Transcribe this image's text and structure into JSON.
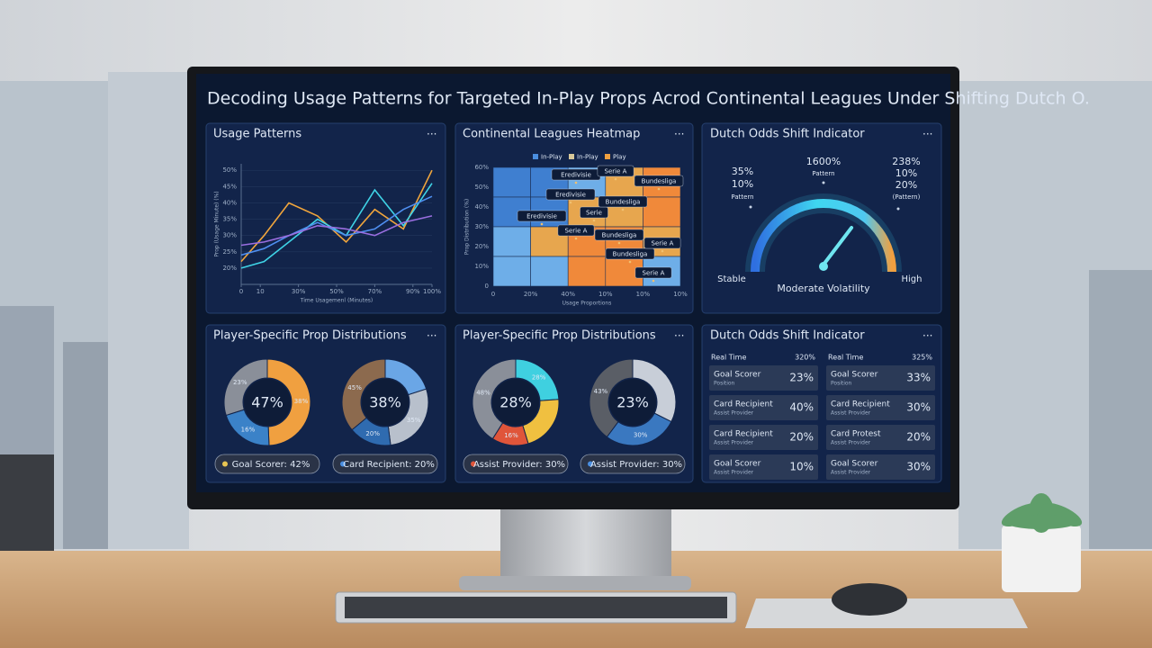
{
  "title": "Decoding Usage Patterns for Targeted In-Play Props Acrod Continental Leagues Under Shifting Dutch O.",
  "menu": "...",
  "usage_chart": {
    "type": "line",
    "title": "Usage Patterns",
    "y_label": "Prop (Usage Minute) (%)",
    "x_label": "Time Usagemenl (Minutes)",
    "ylim": [
      15,
      52
    ],
    "yticks": [
      {
        "value": 20,
        "label": "20%"
      },
      {
        "value": 25,
        "label": "25%"
      },
      {
        "value": 30,
        "label": "30%"
      },
      {
        "value": 35,
        "label": "35%"
      },
      {
        "value": 40,
        "label": "40%"
      },
      {
        "value": 45,
        "label": "45%"
      },
      {
        "value": 50,
        "label": "50%"
      }
    ],
    "xlim": [
      0,
      100
    ],
    "xticks": [
      0,
      10,
      {
        "value": 30,
        "label": "30%"
      },
      {
        "value": 50,
        "label": "50%"
      },
      {
        "value": 70,
        "label": "70%"
      },
      {
        "value": 90,
        "label": "90%"
      },
      {
        "value": 100,
        "label": "100%"
      }
    ],
    "x": [
      0,
      12,
      25,
      40,
      55,
      70,
      85,
      100
    ],
    "series": [
      {
        "color": "#f0a53c",
        "values": [
          22,
          30,
          40,
          36,
          28,
          38,
          32,
          50
        ]
      },
      {
        "color": "#3fd3e6",
        "values": [
          20,
          22,
          28,
          35,
          30,
          44,
          33,
          46
        ]
      },
      {
        "color": "#4f8ff0",
        "values": [
          24,
          26,
          30,
          34,
          30,
          32,
          38,
          42
        ]
      },
      {
        "color": "#9a6ee0",
        "values": [
          27,
          28,
          30,
          33,
          32,
          30,
          34,
          36
        ]
      }
    ]
  },
  "heatmap": {
    "title": "Continental Leagues Heatmap",
    "legend": [
      {
        "name": "In-Play",
        "color": "#4a8ee0"
      },
      {
        "name": "In-Play",
        "color": "#d8c89a"
      },
      {
        "name": "Play",
        "color": "#f0a040"
      }
    ],
    "y_label": "Prop Distribution (%)",
    "x_label": "Usage Proportions",
    "yticks": [
      "60%",
      "50%",
      "40%",
      "30%",
      "20%",
      "10%",
      "0"
    ],
    "xticks": [
      "0",
      "20%",
      "40%",
      "10%",
      "10%",
      "10%"
    ],
    "color_scale": [
      "#3f7fd0",
      "#6eaee8",
      "#e7a64e",
      "#f0893a"
    ],
    "cells": [
      [
        10,
        15,
        40,
        70,
        80
      ],
      [
        12,
        20,
        65,
        55,
        75
      ],
      [
        35,
        70,
        80,
        85,
        55
      ],
      [
        30,
        45,
        90,
        75,
        30
      ]
    ],
    "tags": [
      "Eredivisie",
      "Serie A",
      "Eredivisie",
      "Bundesliga",
      "Eredivisie",
      "Serie",
      "Bundesliga",
      "Serie A",
      "Bundesliga",
      "Bundesliga",
      "Serie A",
      "Serie A"
    ]
  },
  "gauge": {
    "title": "Dutch Odds Shift Indicator",
    "value": 68,
    "left": [
      "35%",
      "10%",
      "Pattern"
    ],
    "middle": [
      "1600%",
      "Pattern"
    ],
    "right": [
      "238%",
      "10%",
      "20%",
      "(Pattern)"
    ],
    "low": "Stable",
    "high": "High",
    "caption": "Moderate Volatility"
  },
  "distribution_titles": [
    "Player-Specific Prop Distributions",
    "Player-Specific Prop Distributions"
  ],
  "donuts": [
    {
      "center": "47%",
      "pill": "Goal Scorer: 42%",
      "dot": "#e8c552",
      "segments": [
        {
          "value": 38,
          "label": "38%",
          "color": "#f0a040"
        },
        {
          "value": 16,
          "label": "16%",
          "color": "#3b82c8"
        },
        {
          "value": 23,
          "label": "23%",
          "color": "#8a8f99"
        }
      ]
    },
    {
      "center": "38%",
      "pill": "Card Recipient: 20%",
      "dot": "#4a8ee0",
      "segments": [
        {
          "value": 25,
          "color": "#6aa6e6"
        },
        {
          "value": 35,
          "label": "35%",
          "color": "#b8c0cc"
        },
        {
          "value": 20,
          "label": "20%",
          "color": "#2f6bb0"
        },
        {
          "value": 45,
          "label": "45%",
          "color": "#8c6a4e"
        }
      ]
    },
    {
      "center": "28%",
      "pill": "Assist Provider: 30%",
      "dot": "#e0553a",
      "segments": [
        {
          "value": 28,
          "label": "28%",
          "color": "#3fd0e0"
        },
        {
          "value": 25,
          "color": "#f0c040"
        },
        {
          "value": 16,
          "label": "16%",
          "color": "#e0553a"
        },
        {
          "value": 48,
          "label": "48%",
          "color": "#8a8f99"
        }
      ]
    },
    {
      "center": "23%",
      "pill": "Assist Provider: 30%",
      "dot": "#4a8ee0",
      "segments": [
        {
          "value": 35,
          "color": "#c8ced8"
        },
        {
          "value": 30,
          "label": "30%",
          "color": "#3a78c0"
        },
        {
          "value": 43,
          "label": "43%",
          "color": "#5a5e66"
        }
      ]
    }
  ],
  "table": {
    "title": "Dutch Odds Shift Indicator",
    "headers": [
      [
        "Real Time",
        "320%"
      ],
      [
        "Real Time",
        "325%"
      ]
    ],
    "columns": [
      [
        {
          "name": "Goal Scorer",
          "sub": "Position",
          "value": "23%"
        },
        {
          "name": "Card Recipient",
          "sub": "Assist Provider",
          "value": "40%"
        },
        {
          "name": "Card Recipient",
          "sub": "Assist Provider",
          "value": "20%"
        },
        {
          "name": "Goal Scorer",
          "sub": "Assist Provider",
          "value": "10%"
        }
      ],
      [
        {
          "name": "Goal Scorer",
          "sub": "Position",
          "value": "33%"
        },
        {
          "name": "Card Recipient",
          "sub": "Assist Provider",
          "value": "30%"
        },
        {
          "name": "Card Protest",
          "sub": "Assist Provider",
          "value": "20%"
        },
        {
          "name": "Goal Scorer",
          "sub": "Assist Provider",
          "value": "30%"
        }
      ]
    ]
  }
}
